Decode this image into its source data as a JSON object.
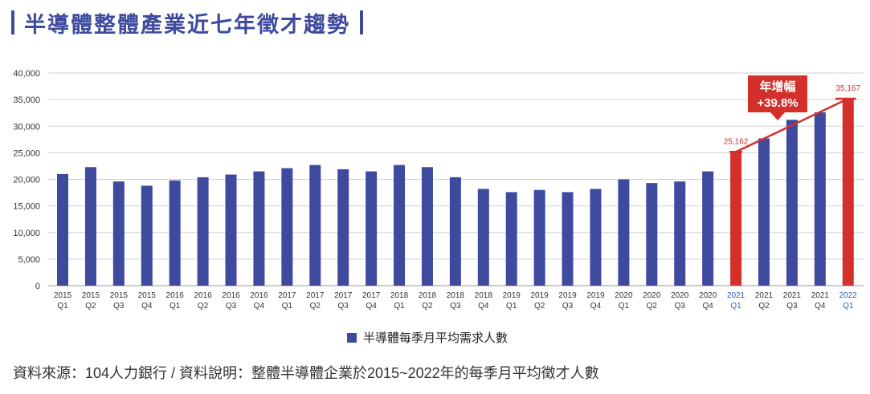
{
  "title": "半導體整體產業近七年徵才趨勢",
  "source_note": "資料來源：104人力銀行 / 資料說明：整體半導體企業於2015~2022年的每季月平均徵才人數",
  "colors": {
    "primary": "#3e4a9e",
    "highlight": "#d3302c",
    "grid": "#d0d0d0"
  },
  "chart_data": {
    "type": "bar",
    "categories": [
      [
        "2015",
        "Q1"
      ],
      [
        "2015",
        "Q2"
      ],
      [
        "2015",
        "Q3"
      ],
      [
        "2015",
        "Q4"
      ],
      [
        "2016",
        "Q1"
      ],
      [
        "2016",
        "Q2"
      ],
      [
        "2016",
        "Q3"
      ],
      [
        "2016",
        "Q4"
      ],
      [
        "2017",
        "Q1"
      ],
      [
        "2017",
        "Q2"
      ],
      [
        "2017",
        "Q3"
      ],
      [
        "2017",
        "Q4"
      ],
      [
        "2018",
        "Q1"
      ],
      [
        "2018",
        "Q2"
      ],
      [
        "2018",
        "Q3"
      ],
      [
        "2018",
        "Q4"
      ],
      [
        "2019",
        "Q1"
      ],
      [
        "2019",
        "Q2"
      ],
      [
        "2019",
        "Q3"
      ],
      [
        "2019",
        "Q4"
      ],
      [
        "2020",
        "Q1"
      ],
      [
        "2020",
        "Q2"
      ],
      [
        "2020",
        "Q3"
      ],
      [
        "2020",
        "Q4"
      ],
      [
        "2021",
        "Q1"
      ],
      [
        "2021",
        "Q2"
      ],
      [
        "2021",
        "Q3"
      ],
      [
        "2021",
        "Q4"
      ],
      [
        "2022",
        "Q1"
      ]
    ],
    "series": [
      {
        "name": "半導體每季月平均需求人數",
        "values": [
          21000,
          22300,
          19600,
          18800,
          19800,
          20400,
          20900,
          21500,
          22100,
          22700,
          21900,
          21500,
          22700,
          22300,
          20400,
          18200,
          17600,
          18000,
          17600,
          18200,
          20000,
          19300,
          19600,
          21500,
          25162,
          27700,
          31200,
          32600,
          35167
        ]
      }
    ],
    "highlight_indices": [
      24,
      28
    ],
    "data_labels": [
      {
        "index": 24,
        "text": "25,162"
      },
      {
        "index": 28,
        "text": "35,167"
      }
    ],
    "annotation": {
      "line1": "年增幅",
      "line2": "+39.8%"
    },
    "yticks": [
      "0",
      "5,000",
      "10,000",
      "15,000",
      "20,000",
      "25,000",
      "30,000",
      "35,000",
      "40,000"
    ],
    "ylim": [
      0,
      40000
    ],
    "grid": true,
    "legend_position": "bottom-center"
  }
}
